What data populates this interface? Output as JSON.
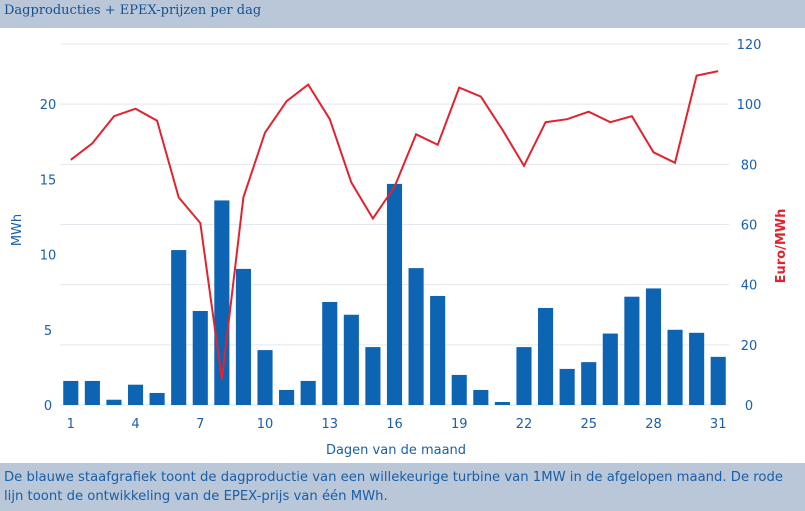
{
  "header": {
    "title": "Dagproducties + EPEX-prijzen per dag"
  },
  "footer": {
    "caption": "De blauwe staafgrafiek toont de dagproductie van een willekeurige turbine van 1MW in de afgelopen maand. De rode lijn toont de ontwikkeling van de EPEX-prijs van één MWh."
  },
  "colors": {
    "bars": "#0d64b3",
    "line": "#e0242f",
    "axis_text_left": "#1a5fa8",
    "axis_text_right": "#e0242f",
    "header_bg": "#b9c7d8"
  },
  "chart_data": {
    "type": "bar+line",
    "xlabel": "Dagen van de maand",
    "ylabel_left": "MWh",
    "ylabel_right": "Euro/MWh",
    "x": [
      1,
      2,
      3,
      4,
      5,
      6,
      7,
      8,
      9,
      10,
      11,
      12,
      13,
      14,
      15,
      16,
      17,
      18,
      19,
      20,
      21,
      22,
      23,
      24,
      25,
      26,
      27,
      28,
      29,
      30,
      31
    ],
    "x_tick_labels": [
      "1",
      "4",
      "7",
      "10",
      "13",
      "16",
      "19",
      "22",
      "25",
      "28",
      "31"
    ],
    "ylim_left": [
      0,
      24
    ],
    "yticks_left": [
      "0",
      "5",
      "10",
      "15",
      "20"
    ],
    "ylim_right": [
      0,
      120
    ],
    "yticks_right": [
      "0",
      "20",
      "40",
      "60",
      "80",
      "100",
      "120"
    ],
    "grid": true,
    "series": [
      {
        "axis": "left",
        "kind": "bar",
        "values": [
          1.6,
          1.6,
          0.35,
          1.35,
          0.8,
          10.3,
          6.25,
          13.6,
          9.05,
          3.65,
          1.0,
          1.6,
          6.85,
          6.0,
          3.85,
          14.7,
          9.1,
          7.25,
          2.0,
          1.0,
          0.2,
          3.85,
          6.45,
          2.4,
          2.85,
          4.75,
          7.2,
          7.75,
          5.0,
          4.8,
          3.2
        ]
      },
      {
        "axis": "right",
        "kind": "line",
        "values": [
          81.5,
          87.0,
          96.0,
          98.5,
          94.5,
          69.0,
          60.5,
          8.5,
          69.0,
          90.5,
          101.0,
          106.5,
          95.0,
          74.0,
          62.0,
          72.5,
          90.0,
          86.5,
          105.5,
          102.5,
          91.5,
          79.5,
          94.0,
          95.0,
          97.5,
          94.0,
          96.0,
          84.0,
          80.5,
          109.5,
          111.0
        ]
      }
    ]
  }
}
